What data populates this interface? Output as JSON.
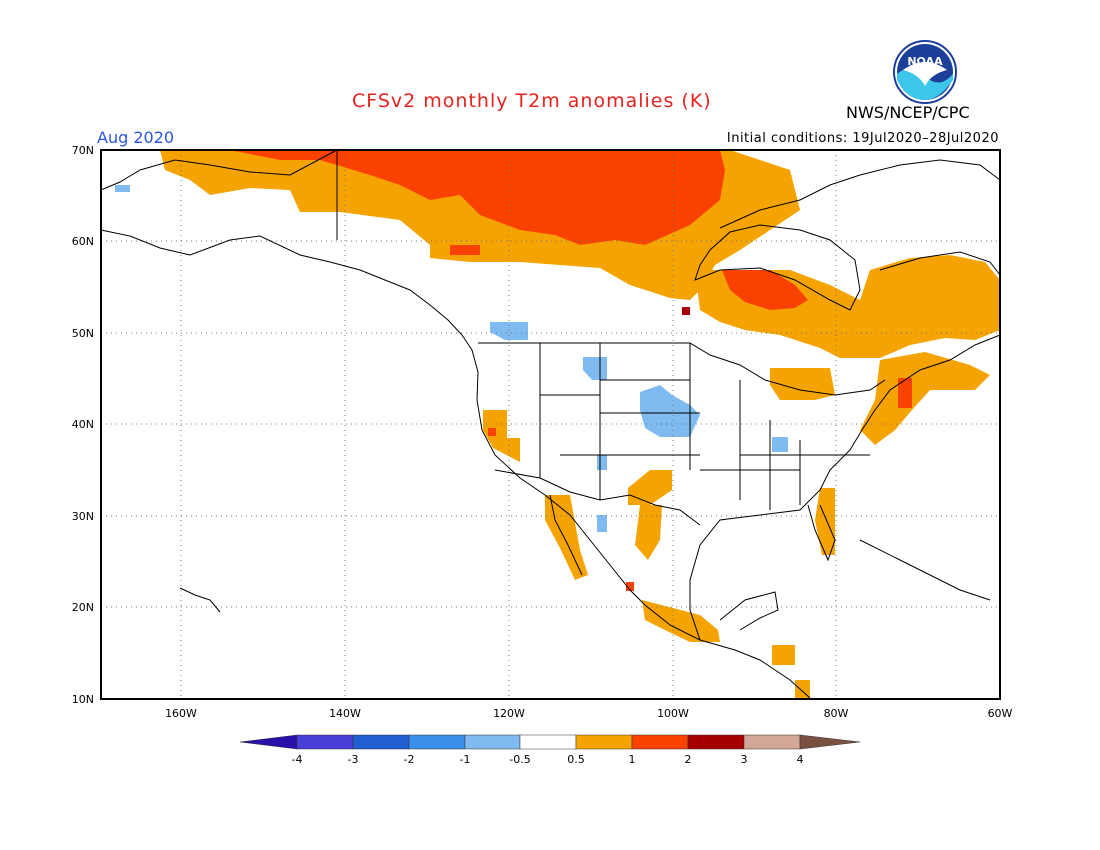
{
  "header": {
    "title": "CFSv2 monthly T2m anomalies (K)",
    "agency": "NWS/NCEP/CPC",
    "logo_text": "NOAA",
    "month": "Aug 2020",
    "initial_conditions": "Initial conditions: 19Jul2020–28Jul2020"
  },
  "map": {
    "projection": "lat-lon",
    "lon_range": [
      -172,
      -60
    ],
    "lat_range": [
      10,
      70
    ],
    "lat_ticks": [
      {
        "value": 70,
        "label": "70N"
      },
      {
        "value": 60,
        "label": "60N"
      },
      {
        "value": 50,
        "label": "50N"
      },
      {
        "value": 40,
        "label": "40N"
      },
      {
        "value": 30,
        "label": "30N"
      },
      {
        "value": 20,
        "label": "20N"
      },
      {
        "value": 10,
        "label": "10N"
      }
    ],
    "lon_ticks": [
      {
        "value": -160,
        "label": "160W"
      },
      {
        "value": -140,
        "label": "140W"
      },
      {
        "value": -120,
        "label": "120W"
      },
      {
        "value": -100,
        "label": "100W"
      },
      {
        "value": -80,
        "label": "80W"
      },
      {
        "value": -60,
        "label": "60W"
      }
    ],
    "grid": "dotted"
  },
  "colorbar": {
    "levels": [
      "-4",
      "-3",
      "-2",
      "-1",
      "-0.5",
      "0.5",
      "1",
      "2",
      "3",
      "4"
    ],
    "colors": [
      "#2a0fa8",
      "#4b3fd9",
      "#1f5fd1",
      "#3a90e8",
      "#7fbbf0",
      "#ffffff",
      "#f5a300",
      "#fa4200",
      "#a80000",
      "#d2a898",
      "#7a5040"
    ]
  }
}
